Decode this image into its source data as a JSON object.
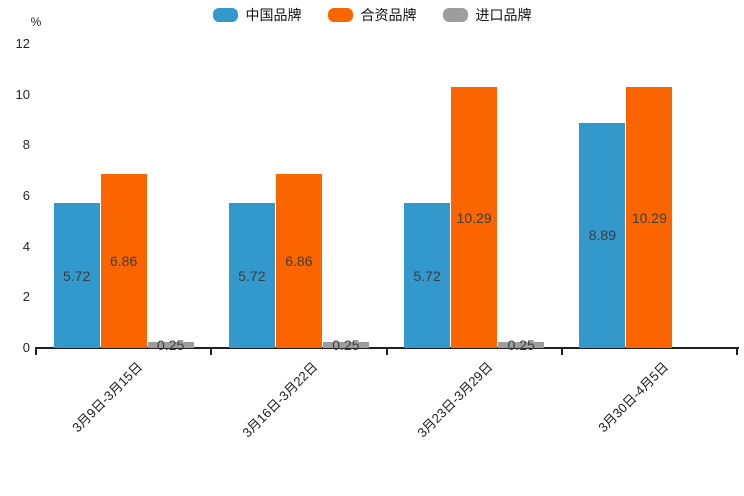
{
  "chart_data": {
    "type": "bar",
    "title": "",
    "unit_label": "%",
    "categories": [
      "3月9日-3月15日",
      "3月16日-3月22日",
      "3月23日-3月29日",
      "3月30日-4月5日"
    ],
    "series": [
      {
        "name": "中国品牌",
        "color": "#3398cc",
        "values": [
          5.72,
          5.72,
          5.72,
          8.89
        ]
      },
      {
        "name": "合资品牌",
        "color": "#fb6500",
        "values": [
          6.86,
          6.86,
          10.29,
          10.29
        ]
      },
      {
        "name": "进口品牌",
        "color": "#9d9d9d",
        "values": [
          0.25,
          0.25,
          0.25,
          null
        ]
      }
    ],
    "ylim": [
      0,
      12
    ],
    "yticks": [
      0,
      2,
      4,
      6,
      8,
      10,
      12
    ],
    "grid": false,
    "legend_position": "top-center",
    "value_labels": "centered-inside-bars",
    "value_label_color": "#3d3d3d",
    "axis_color": "#1f1f1f",
    "x_label_rotation_deg": 45
  }
}
